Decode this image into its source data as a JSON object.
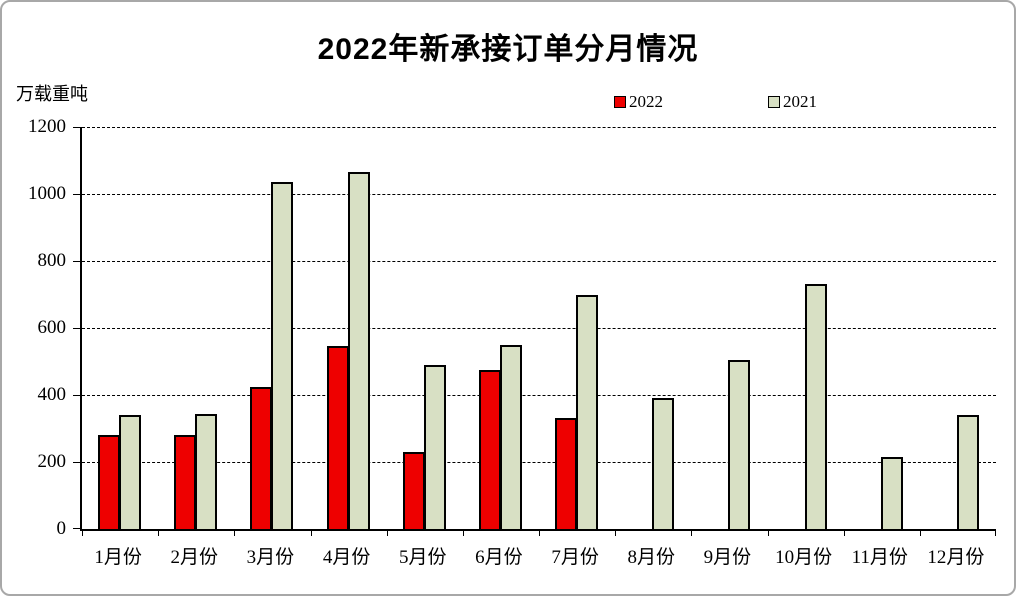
{
  "chart": {
    "legend": [
      {
        "label": "2022",
        "color": "#ee0000",
        "border_color": "#000000"
      },
      {
        "label": "2021",
        "color": "#d8e0c4",
        "border_color": "#000000"
      }
    ]
  },
  "chart_data": {
    "type": "bar",
    "title": "2022年新承接订单分月情况",
    "ylabel": "万载重吨",
    "xlabel": "",
    "categories": [
      "1月份",
      "2月份",
      "3月份",
      "4月份",
      "5月份",
      "6月份",
      "7月份",
      "8月份",
      "9月份",
      "10月份",
      "11月份",
      "12月份"
    ],
    "series": [
      {
        "name": "2022",
        "color": "#ee0000",
        "values": [
          280,
          280,
          425,
          545,
          230,
          475,
          330,
          null,
          null,
          null,
          null,
          null
        ]
      },
      {
        "name": "2021",
        "color": "#d8e0c4",
        "values": [
          340,
          342,
          1035,
          1065,
          490,
          550,
          700,
          390,
          505,
          730,
          215,
          340
        ]
      }
    ],
    "ylim": [
      0,
      1200
    ],
    "yticks": [
      0,
      200,
      400,
      600,
      800,
      1000,
      1200
    ],
    "grid": "horizontal-dashed",
    "legend_position": "top-center",
    "bar_border_color": "#000000"
  }
}
